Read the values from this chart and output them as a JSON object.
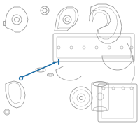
{
  "background_color": "#ffffff",
  "fig_width": 2.0,
  "fig_height": 2.0,
  "dpi": 100,
  "lc": "#999999",
  "lw": 0.6,
  "lw_thin": 0.35,
  "hc": "#1e6fa8",
  "hlw": 1.2
}
